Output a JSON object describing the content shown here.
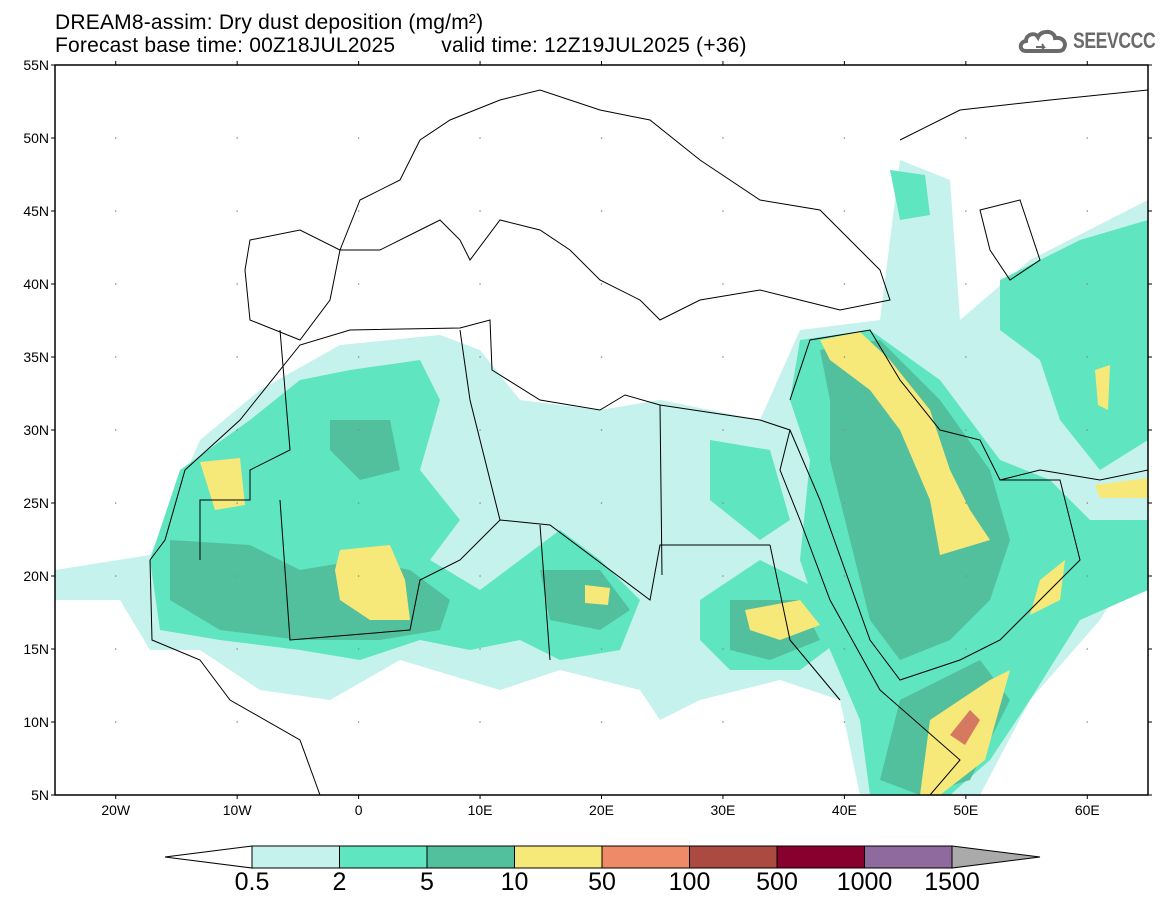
{
  "header": {
    "title": "DREAM8-assim: Dry dust deposition (mg/m²)",
    "base_time": "Forecast base time: 00Z18JUL2025",
    "valid_time": "valid time: 12Z19JUL2025 (+36)",
    "logo_text": "SEEVCCC"
  },
  "map": {
    "lat_labels": [
      "55N",
      "50N",
      "45N",
      "40N",
      "35N",
      "30N",
      "25N",
      "20N",
      "15N",
      "10N",
      "5N"
    ],
    "lon_labels": [
      "20W",
      "10W",
      "0",
      "10E",
      "20E",
      "30E",
      "40E",
      "50E",
      "60E"
    ],
    "lon_range": [
      -25,
      65
    ],
    "lat_range": [
      5,
      55
    ]
  },
  "colorbar": {
    "labels": [
      "0.5",
      "2",
      "5",
      "10",
      "50",
      "100",
      "500",
      "1000",
      "1500"
    ],
    "colors": [
      "#c5f2ec",
      "#5fe5bf",
      "#52c09c",
      "#f7e87a",
      "#ee8a68",
      "#aa4a40",
      "#88002e",
      "#8e6a9e"
    ],
    "under_color": "#ffffff",
    "over_color": "#aaaaaa"
  }
}
